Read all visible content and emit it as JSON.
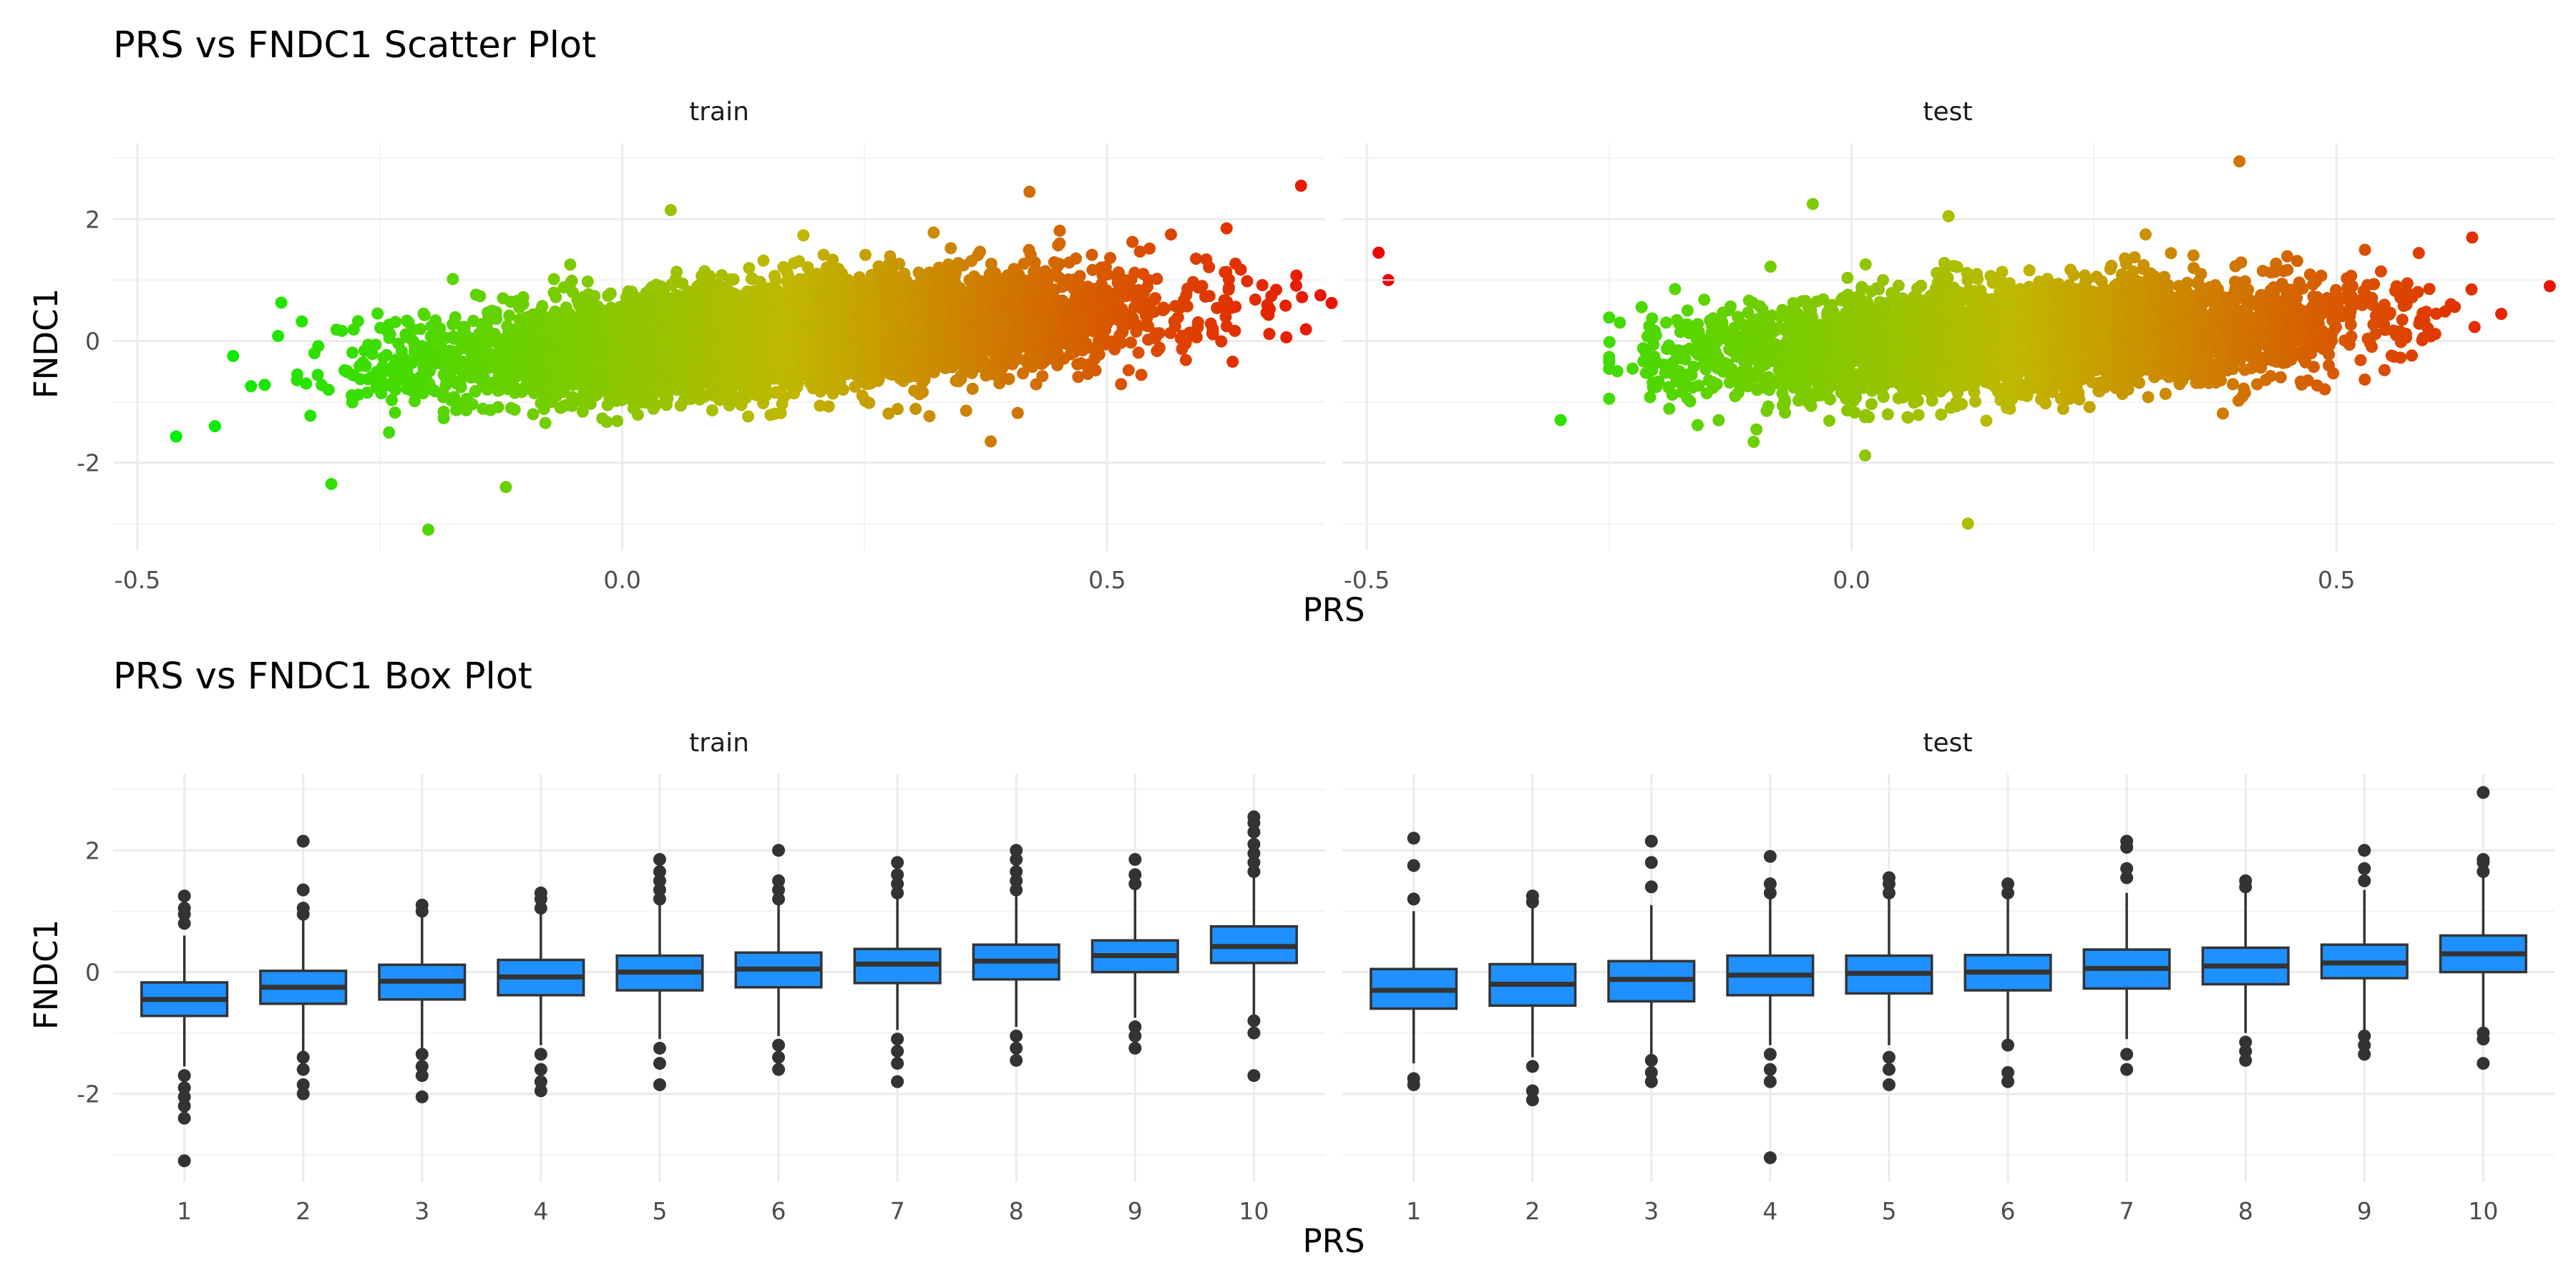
{
  "chart_data": [
    {
      "type": "scatter",
      "title": "PRS vs FNDC1 Scatter Plot",
      "xlabel": "PRS",
      "ylabel": "FNDC1",
      "panels": [
        "train",
        "test"
      ],
      "xlim": [
        -0.5,
        0.75
      ],
      "ylim": [
        -3,
        3
      ],
      "xticks": [
        -0.5,
        0.0,
        0.5
      ],
      "xtick_labels": [
        "-0.5",
        "0.0",
        "0.5"
      ],
      "yticks": [
        -2,
        0,
        2
      ],
      "ytick_labels": [
        "-2",
        "0",
        "2"
      ],
      "grid": true,
      "color_gradient": {
        "low": "#00ee00",
        "mid": "#c0b800",
        "high": "#ee0000"
      },
      "trend": {
        "train": {
          "intercept": -0.1,
          "slope": 1.15
        },
        "test": {
          "intercept": -0.1,
          "slope": 0.8
        }
      },
      "x_range_observed": {
        "train": [
          -0.46,
          0.79
        ],
        "test": [
          -0.3,
          0.72
        ]
      },
      "outliers": {
        "train": [
          [
            -0.46,
            -1.57
          ],
          [
            -0.42,
            -1.4
          ],
          [
            -0.3,
            -2.35
          ],
          [
            -0.2,
            -3.1
          ],
          [
            -0.12,
            -2.4
          ],
          [
            0.05,
            2.15
          ],
          [
            0.42,
            2.45
          ],
          [
            0.7,
            2.55
          ],
          [
            0.78,
            1.45
          ],
          [
            0.79,
            1.0
          ],
          [
            0.72,
            0.75
          ],
          [
            0.38,
            -1.65
          ]
        ],
        "test": [
          [
            -0.3,
            -1.3
          ],
          [
            -0.04,
            2.25
          ],
          [
            0.12,
            -3.0
          ],
          [
            0.4,
            2.95
          ],
          [
            0.72,
            0.9
          ],
          [
            0.64,
            1.7
          ],
          [
            0.1,
            2.05
          ]
        ]
      }
    },
    {
      "type": "box",
      "title": "PRS vs FNDC1 Box Plot",
      "xlabel": "PRS",
      "ylabel": "FNDC1",
      "panels": [
        "train",
        "test"
      ],
      "categories": [
        "1",
        "2",
        "3",
        "4",
        "5",
        "6",
        "7",
        "8",
        "9",
        "10"
      ],
      "ylim": [
        -3,
        3
      ],
      "yticks": [
        -2,
        0,
        2
      ],
      "ytick_labels": [
        "-2",
        "0",
        "2"
      ],
      "grid": true,
      "box_color": "#1e90ff",
      "series": [
        {
          "panel": "train",
          "boxes": [
            {
              "q1": -0.72,
              "median": -0.45,
              "q3": -0.17,
              "low": -1.55,
              "high": 0.6,
              "outliers": [
                -3.1,
                -2.4,
                -2.2,
                -2.05,
                -1.9,
                -1.7,
                0.8,
                0.95,
                1.05,
                1.25
              ]
            },
            {
              "q1": -0.52,
              "median": -0.25,
              "q3": 0.02,
              "low": -1.3,
              "high": 0.85,
              "outliers": [
                -2.0,
                -1.85,
                -1.6,
                -1.4,
                0.95,
                1.05,
                1.35,
                2.15
              ]
            },
            {
              "q1": -0.45,
              "median": -0.15,
              "q3": 0.12,
              "low": -1.25,
              "high": 0.95,
              "outliers": [
                -2.05,
                -1.7,
                -1.55,
                -1.35,
                1.0,
                1.1
              ]
            },
            {
              "q1": -0.38,
              "median": -0.08,
              "q3": 0.2,
              "low": -1.2,
              "high": 1.0,
              "outliers": [
                -1.95,
                -1.8,
                -1.6,
                -1.35,
                1.05,
                1.2,
                1.3
              ]
            },
            {
              "q1": -0.3,
              "median": 0.0,
              "q3": 0.27,
              "low": -1.1,
              "high": 1.1,
              "outliers": [
                -1.85,
                -1.5,
                -1.25,
                1.2,
                1.35,
                1.5,
                1.65,
                1.85
              ]
            },
            {
              "q1": -0.25,
              "median": 0.05,
              "q3": 0.32,
              "low": -1.05,
              "high": 1.1,
              "outliers": [
                -1.6,
                -1.4,
                -1.2,
                1.2,
                1.35,
                1.5,
                2.0
              ]
            },
            {
              "q1": -0.18,
              "median": 0.13,
              "q3": 0.38,
              "low": -0.95,
              "high": 1.2,
              "outliers": [
                -1.8,
                -1.5,
                -1.3,
                -1.1,
                1.3,
                1.45,
                1.6,
                1.8
              ]
            },
            {
              "q1": -0.12,
              "median": 0.18,
              "q3": 0.45,
              "low": -0.9,
              "high": 1.25,
              "outliers": [
                -1.45,
                -1.25,
                -1.05,
                1.35,
                1.5,
                1.65,
                1.85,
                2.0
              ]
            },
            {
              "q1": 0.0,
              "median": 0.27,
              "q3": 0.52,
              "low": -0.75,
              "high": 1.35,
              "outliers": [
                -1.25,
                -1.05,
                -0.9,
                1.45,
                1.6,
                1.85
              ]
            },
            {
              "q1": 0.15,
              "median": 0.42,
              "q3": 0.75,
              "low": -0.7,
              "high": 1.55,
              "outliers": [
                -1.7,
                -1.0,
                -0.8,
                1.65,
                1.8,
                1.95,
                2.1,
                2.3,
                2.45,
                2.55
              ]
            }
          ]
        },
        {
          "panel": "test",
          "boxes": [
            {
              "q1": -0.6,
              "median": -0.3,
              "q3": 0.05,
              "low": -1.5,
              "high": 1.0,
              "outliers": [
                -1.85,
                -1.75,
                1.2,
                1.75,
                2.2
              ]
            },
            {
              "q1": -0.55,
              "median": -0.2,
              "q3": 0.13,
              "low": -1.4,
              "high": 1.1,
              "outliers": [
                -2.1,
                -1.95,
                -1.55,
                1.15,
                1.25
              ]
            },
            {
              "q1": -0.48,
              "median": -0.12,
              "q3": 0.18,
              "low": -1.35,
              "high": 1.1,
              "outliers": [
                -1.8,
                -1.65,
                -1.45,
                1.4,
                1.8,
                2.15
              ]
            },
            {
              "q1": -0.38,
              "median": -0.05,
              "q3": 0.27,
              "low": -1.2,
              "high": 1.2,
              "outliers": [
                -3.05,
                -1.8,
                -1.6,
                -1.35,
                1.3,
                1.45,
                1.9
              ]
            },
            {
              "q1": -0.35,
              "median": -0.02,
              "q3": 0.27,
              "low": -1.2,
              "high": 1.2,
              "outliers": [
                -1.85,
                -1.6,
                -1.4,
                1.3,
                1.45,
                1.55
              ]
            },
            {
              "q1": -0.3,
              "median": 0.0,
              "q3": 0.28,
              "low": -1.1,
              "high": 1.2,
              "outliers": [
                -1.8,
                -1.65,
                -1.2,
                1.3,
                1.45
              ]
            },
            {
              "q1": -0.27,
              "median": 0.06,
              "q3": 0.37,
              "low": -1.1,
              "high": 1.3,
              "outliers": [
                -1.6,
                -1.35,
                1.55,
                1.7,
                2.05,
                2.15
              ]
            },
            {
              "q1": -0.2,
              "median": 0.1,
              "q3": 0.4,
              "low": -1.0,
              "high": 1.3,
              "outliers": [
                -1.45,
                -1.3,
                -1.15,
                1.4,
                1.5
              ]
            },
            {
              "q1": -0.1,
              "median": 0.15,
              "q3": 0.45,
              "low": -0.95,
              "high": 1.35,
              "outliers": [
                -1.35,
                -1.2,
                -1.05,
                1.5,
                1.7,
                2.0
              ]
            },
            {
              "q1": 0.0,
              "median": 0.3,
              "q3": 0.6,
              "low": -0.9,
              "high": 1.55,
              "outliers": [
                -1.5,
                -1.1,
                -1.0,
                1.65,
                1.8,
                1.85,
                2.95
              ]
            }
          ]
        }
      ]
    }
  ]
}
